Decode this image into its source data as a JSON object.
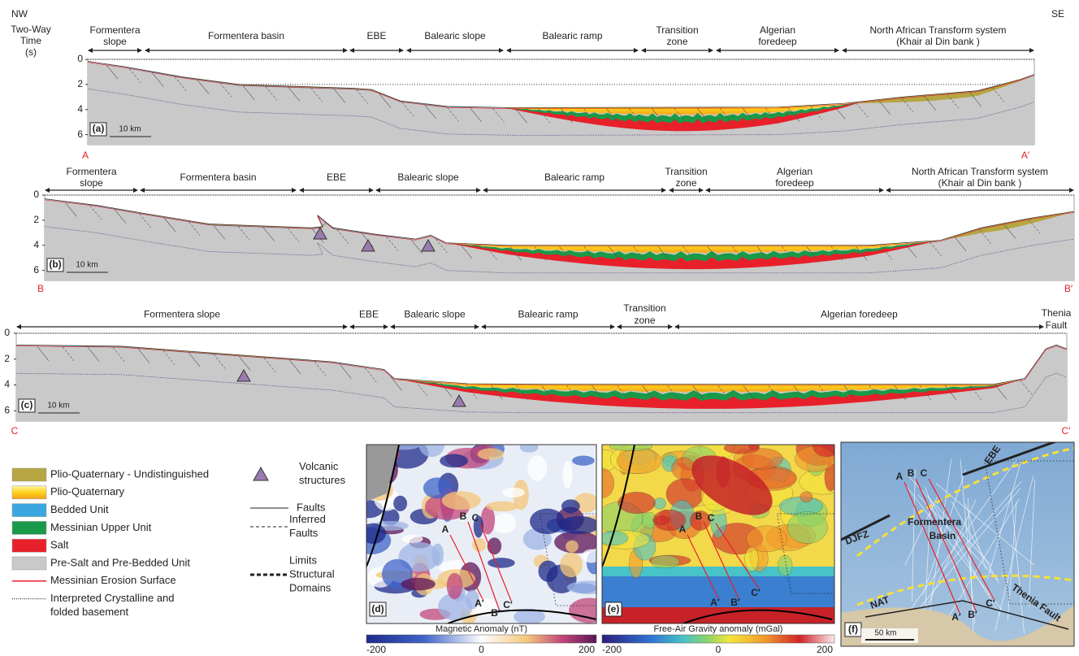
{
  "figure": {
    "orientation": {
      "left": "NW",
      "right": "SE"
    },
    "axis_title": [
      "Two-Way",
      "Time",
      "(s)"
    ],
    "sections": [
      {
        "panel": "(a)",
        "start": "A",
        "end": "A′",
        "scale_bar": "10 km",
        "depth_ticks": [
          0,
          2,
          4,
          6
        ],
        "domains": [
          [
            "Formentera",
            "slope"
          ],
          [
            "Formentera basin"
          ],
          [
            "EBE"
          ],
          [
            "Balearic slope"
          ],
          [
            "Balearic ramp"
          ],
          [
            "Transition",
            "zone"
          ],
          [
            "Algerian",
            "foredeep"
          ],
          [
            "North African Transform system",
            "(Khair al Din bank )"
          ]
        ]
      },
      {
        "panel": "(b)",
        "start": "B",
        "end": "B′",
        "scale_bar": "10 km",
        "depth_ticks": [
          0,
          2,
          4,
          6
        ],
        "domains": [
          [
            "Formentera",
            "slope"
          ],
          [
            "Formentera basin"
          ],
          [
            "EBE"
          ],
          [
            "Balearic slope"
          ],
          [
            "Balearic ramp"
          ],
          [
            "Transition",
            "zone"
          ],
          [
            "Algerian",
            "foredeep"
          ],
          [
            "North African Transform system",
            "(Khair al Din bank )"
          ]
        ]
      },
      {
        "panel": "(c)",
        "start": "C",
        "end": "C′",
        "scale_bar": "10 km",
        "depth_ticks": [
          0,
          2,
          4,
          6
        ],
        "domains": [
          [
            "Formentera slope"
          ],
          [
            "EBE"
          ],
          [
            "Balearic slope"
          ],
          [
            "Balearic ramp"
          ],
          [
            "Transition",
            "zone"
          ],
          [
            "Algerian foredeep"
          ],
          [
            "Thenia",
            "Fault"
          ]
        ]
      }
    ],
    "legend_units": [
      [
        "Plio-Quaternary - Undistinguished"
      ],
      [
        "Plio-Quaternary"
      ],
      [
        "Bedded Unit"
      ],
      [
        "Messinian Upper Unit"
      ],
      [
        "Salt"
      ],
      [
        "Pre-Salt and Pre-Bedded Unit"
      ],
      [
        "Messinian Erosion Surface"
      ],
      [
        "Interpreted Crystalline and",
        "folded basement"
      ]
    ],
    "legend_symbols": [
      [
        "Volcanic",
        "structures"
      ],
      [
        "Faults"
      ],
      [
        "Inferred",
        "Faults"
      ],
      [
        "Limits",
        "Structural",
        "Domains"
      ]
    ],
    "maps": [
      {
        "panel": "(d)",
        "labels": [
          "A",
          "B",
          "C",
          "A′",
          "B′",
          "C′"
        ],
        "colorbar": {
          "title": "Magnetic Anomaly (nT)",
          "ticks": [
            -200,
            0,
            200
          ]
        }
      },
      {
        "panel": "(e)",
        "labels": [
          "A",
          "B",
          "C",
          "A′",
          "B′",
          "C′"
        ],
        "colorbar": {
          "title": "Free-Air Gravity anomaly (mGal)",
          "ticks": [
            -200,
            0,
            200
          ]
        }
      },
      {
        "panel": "(f)",
        "labels": [
          "A",
          "B",
          "C",
          "A′",
          "B′",
          "C′",
          "EBE",
          "DJFZ",
          "Formentera",
          "Basin",
          "NAT",
          "Thenia Fault"
        ],
        "scale_bar": "50 km"
      }
    ]
  }
}
